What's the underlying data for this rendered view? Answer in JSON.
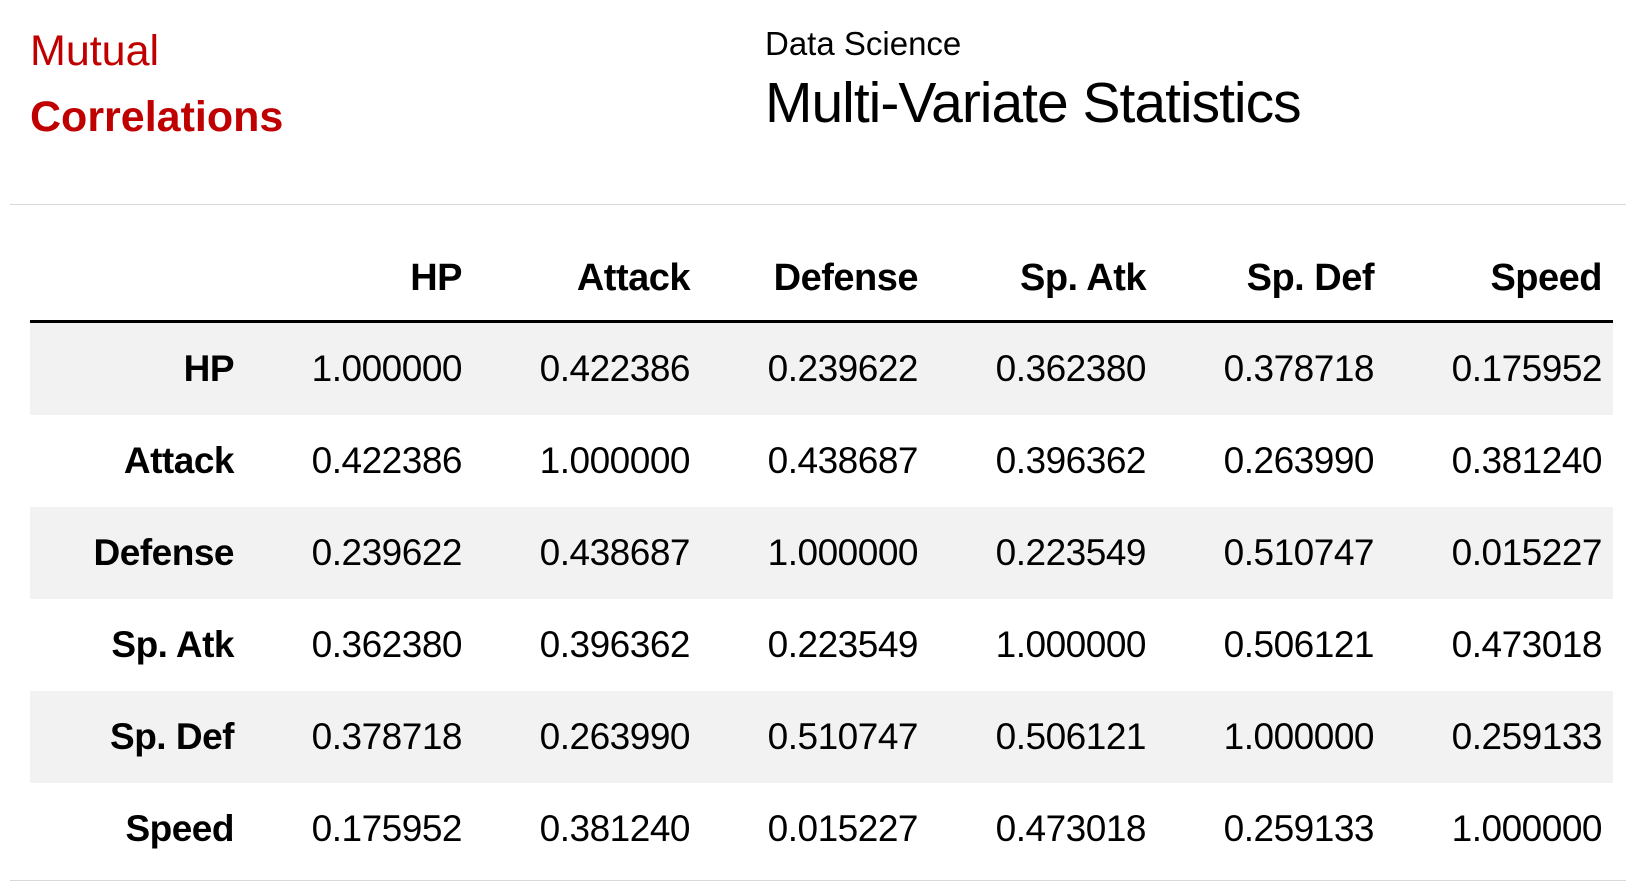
{
  "header": {
    "left": {
      "line1": "Mutual",
      "line2": "Correlations"
    },
    "center": {
      "kicker": "Data Science",
      "title": "Multi-Variate Statistics"
    }
  },
  "table": {
    "columns": [
      "HP",
      "Attack",
      "Defense",
      "Sp. Atk",
      "Sp. Def",
      "Speed"
    ],
    "rows": [
      {
        "label": "HP",
        "values": [
          "1.000000",
          "0.422386",
          "0.239622",
          "0.362380",
          "0.378718",
          "0.175952"
        ]
      },
      {
        "label": "Attack",
        "values": [
          "0.422386",
          "1.000000",
          "0.438687",
          "0.396362",
          "0.263990",
          "0.381240"
        ]
      },
      {
        "label": "Defense",
        "values": [
          "0.239622",
          "0.438687",
          "1.000000",
          "0.223549",
          "0.510747",
          "0.015227"
        ]
      },
      {
        "label": "Sp. Atk",
        "values": [
          "0.362380",
          "0.396362",
          "0.223549",
          "1.000000",
          "0.506121",
          "0.473018"
        ]
      },
      {
        "label": "Sp. Def",
        "values": [
          "0.378718",
          "0.263990",
          "0.510747",
          "0.506121",
          "1.000000",
          "0.259133"
        ]
      },
      {
        "label": "Speed",
        "values": [
          "0.175952",
          "0.381240",
          "0.015227",
          "0.473018",
          "0.259133",
          "1.000000"
        ]
      }
    ]
  },
  "chart_data": {
    "type": "table",
    "title": "Mutual Correlations",
    "subtitle": "Data Science — Multi-Variate Statistics",
    "columns": [
      "HP",
      "Attack",
      "Defense",
      "Sp. Atk",
      "Sp. Def",
      "Speed"
    ],
    "row_labels": [
      "HP",
      "Attack",
      "Defense",
      "Sp. Atk",
      "Sp. Def",
      "Speed"
    ],
    "matrix": [
      [
        1.0,
        0.422386,
        0.239622,
        0.36238,
        0.378718,
        0.175952
      ],
      [
        0.422386,
        1.0,
        0.438687,
        0.396362,
        0.26399,
        0.38124
      ],
      [
        0.239622,
        0.438687,
        1.0,
        0.223549,
        0.510747,
        0.015227
      ],
      [
        0.36238,
        0.396362,
        0.223549,
        1.0,
        0.506121,
        0.473018
      ],
      [
        0.378718,
        0.26399,
        0.510747,
        0.506121,
        1.0,
        0.259133
      ],
      [
        0.175952,
        0.38124,
        0.015227,
        0.473018,
        0.259133,
        1.0
      ]
    ],
    "layout_hints": {
      "striped_rows": true,
      "stripe_color": "#f2f2f2",
      "header_divider": "3px solid black"
    }
  },
  "colors": {
    "accent_red": "#c00000",
    "row_stripe": "#f2f2f2",
    "thin_rule": "#d9d9d9",
    "text": "#000000"
  }
}
